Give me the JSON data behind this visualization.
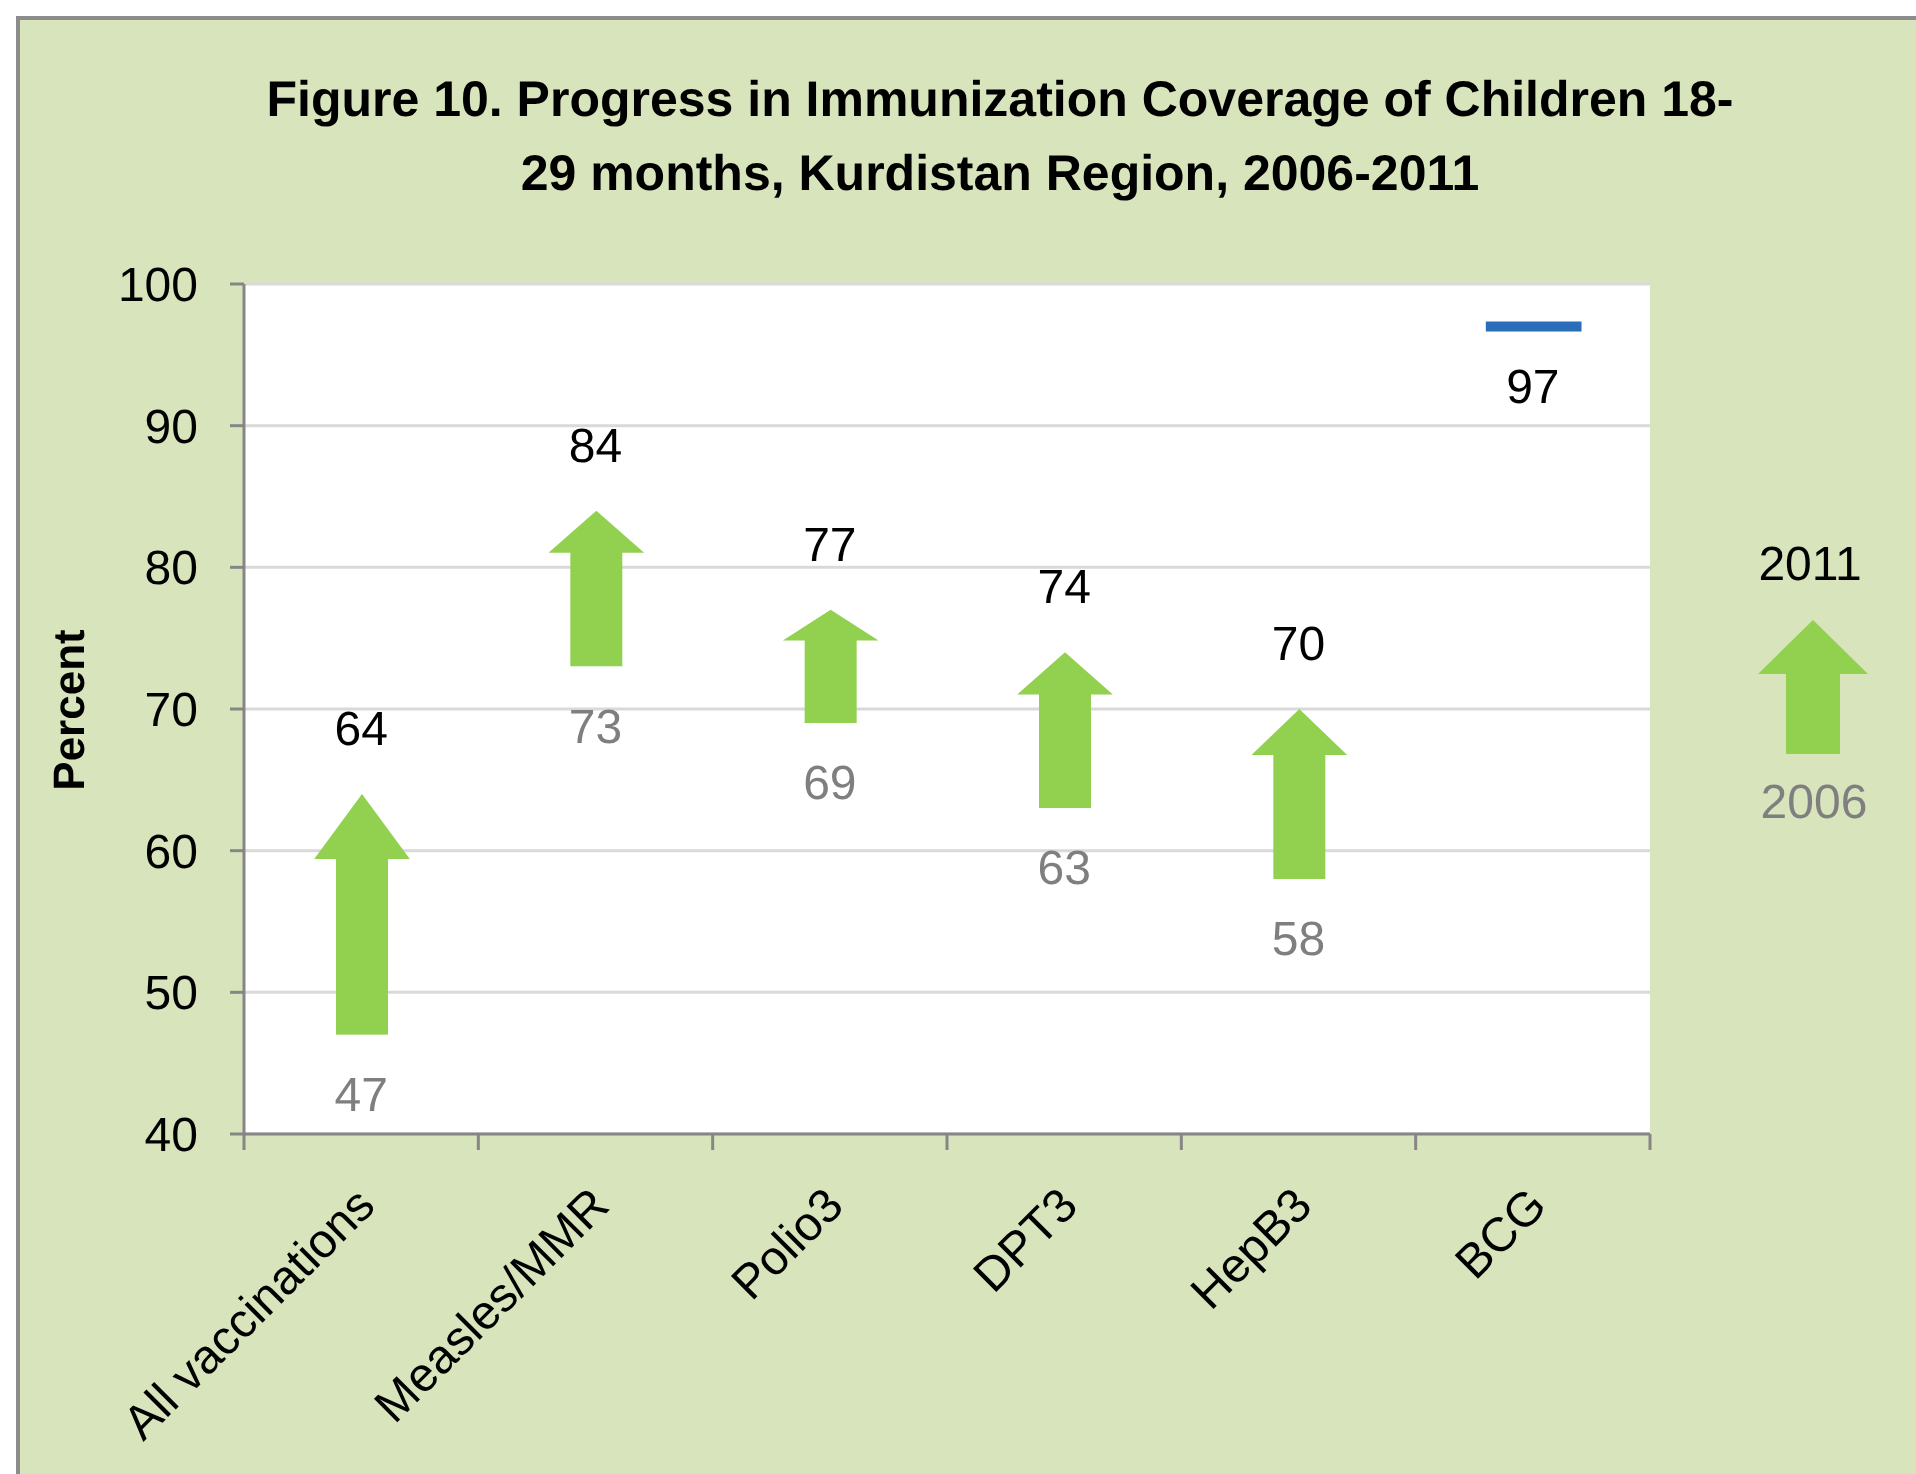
{
  "chart_data": {
    "type": "bar",
    "title": "Figure 10. Progress in Immunization Coverage of Children 18-29 months, Kurdistan Region, 2006-2011",
    "ylabel": "Percent",
    "categories": [
      "All vaccinations",
      "Measles/MMR",
      "Polio3",
      "DPT3",
      "HepB3",
      "BCG"
    ],
    "base": [
      47,
      73,
      69,
      63,
      58,
      97
    ],
    "values": [
      17,
      11,
      8,
      11,
      12,
      0
    ],
    "colors": [
      "#92d050",
      "#92d050",
      "#92d050",
      "#92d050",
      "#92d050",
      "#2a6ebb"
    ],
    "ylim": [
      40,
      100
    ],
    "yticks": [
      40,
      50,
      60,
      70,
      80,
      90,
      100
    ],
    "grid": "y",
    "annotations": [
      {
        "text": "64",
        "x": "All vaccinations",
        "y": 64
      },
      {
        "text": "47",
        "x": "All vaccinations",
        "y": 47
      },
      {
        "text": "84",
        "x": "Measles/MMR",
        "y": 84
      },
      {
        "text": "73",
        "x": "Measles/MMR",
        "y": 73
      },
      {
        "text": "77",
        "x": "Polio3",
        "y": 77
      },
      {
        "text": "69",
        "x": "Polio3",
        "y": 69
      },
      {
        "text": "74",
        "x": "DPT3",
        "y": 74
      },
      {
        "text": "63",
        "x": "DPT3",
        "y": 63
      },
      {
        "text": "70",
        "x": "HepB3",
        "y": 70
      },
      {
        "text": "58",
        "x": "HepB3",
        "y": 58
      },
      {
        "text": "97",
        "x": "BCG",
        "y": 97
      },
      "2011",
      "2006"
    ]
  }
}
